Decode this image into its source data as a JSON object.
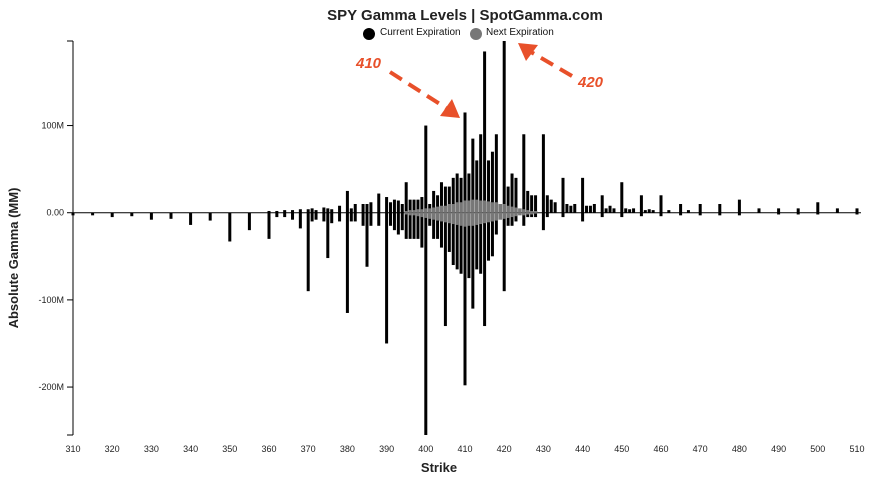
{
  "chart_data": {
    "type": "bar",
    "title": "SPY Gamma Levels | SpotGamma.com",
    "xlabel": "Strike",
    "ylabel": "Absolute Gamma (MM)",
    "xlim": [
      310,
      510
    ],
    "ylim": [
      -255,
      197
    ],
    "x_ticks": [
      "310",
      "320",
      "330",
      "340",
      "350",
      "360",
      "370",
      "380",
      "390",
      "400",
      "410",
      "420",
      "430",
      "440",
      "450",
      "460",
      "470",
      "480",
      "490",
      "500",
      "510"
    ],
    "y_ticks": [
      {
        "value": 100,
        "label": "100M"
      },
      {
        "value": 0,
        "label": "0.00"
      },
      {
        "value": -100,
        "label": "-100M"
      },
      {
        "value": -200,
        "label": "-200M"
      }
    ],
    "legend": {
      "placement": "top-center",
      "items": [
        {
          "label": "Current Expiration",
          "color": "#000000"
        },
        {
          "label": "Next Expiration",
          "color": "#777777"
        }
      ]
    },
    "annotations": [
      {
        "text": "410",
        "target_strike": 410,
        "color": "#e8502a"
      },
      {
        "text": "420",
        "target_strike": 420,
        "color": "#e8502a"
      }
    ],
    "series": [
      {
        "name": "Current Expiration",
        "color": "#000000",
        "bars": [
          [
            310,
            0,
            -3
          ],
          [
            315,
            0,
            -3
          ],
          [
            320,
            0,
            -5
          ],
          [
            325,
            0,
            -4
          ],
          [
            330,
            0,
            -8
          ],
          [
            335,
            0,
            -7
          ],
          [
            340,
            0,
            -14
          ],
          [
            345,
            0,
            -9
          ],
          [
            350,
            0,
            -33
          ],
          [
            355,
            0,
            -20
          ],
          [
            360,
            2,
            -30
          ],
          [
            362,
            2,
            -5
          ],
          [
            364,
            3,
            -5
          ],
          [
            366,
            3,
            -8
          ],
          [
            368,
            4,
            -18
          ],
          [
            370,
            4,
            -90
          ],
          [
            371,
            5,
            -10
          ],
          [
            372,
            3,
            -8
          ],
          [
            374,
            6,
            -10
          ],
          [
            375,
            5,
            -52
          ],
          [
            376,
            4,
            -12
          ],
          [
            378,
            8,
            -10
          ],
          [
            380,
            25,
            -115
          ],
          [
            381,
            5,
            -10
          ],
          [
            382,
            10,
            -10
          ],
          [
            384,
            10,
            -15
          ],
          [
            385,
            10,
            -62
          ],
          [
            386,
            12,
            -15
          ],
          [
            388,
            22,
            -15
          ],
          [
            390,
            18,
            -150
          ],
          [
            391,
            12,
            -15
          ],
          [
            392,
            15,
            -20
          ],
          [
            393,
            14,
            -25
          ],
          [
            394,
            10,
            -20
          ],
          [
            395,
            35,
            -30
          ],
          [
            396,
            15,
            -30
          ],
          [
            397,
            15,
            -30
          ],
          [
            398,
            15,
            -30
          ],
          [
            399,
            18,
            -40
          ],
          [
            400,
            100,
            -255
          ],
          [
            401,
            10,
            -15
          ],
          [
            402,
            25,
            -30
          ],
          [
            403,
            20,
            -30
          ],
          [
            404,
            35,
            -40
          ],
          [
            405,
            30,
            -130
          ],
          [
            406,
            30,
            -45
          ],
          [
            407,
            40,
            -60
          ],
          [
            408,
            45,
            -65
          ],
          [
            409,
            40,
            -70
          ],
          [
            410,
            115,
            -198
          ],
          [
            411,
            45,
            -75
          ],
          [
            412,
            85,
            -110
          ],
          [
            413,
            60,
            -65
          ],
          [
            414,
            90,
            -70
          ],
          [
            415,
            185,
            -130
          ],
          [
            416,
            60,
            -55
          ],
          [
            417,
            70,
            -50
          ],
          [
            418,
            90,
            -25
          ],
          [
            420,
            197,
            -90
          ],
          [
            421,
            30,
            -15
          ],
          [
            422,
            45,
            -15
          ],
          [
            423,
            40,
            -10
          ],
          [
            425,
            90,
            -15
          ],
          [
            426,
            25,
            -5
          ],
          [
            427,
            20,
            -5
          ],
          [
            428,
            20,
            -5
          ],
          [
            430,
            90,
            -20
          ],
          [
            431,
            20,
            -5
          ],
          [
            432,
            15,
            0
          ],
          [
            433,
            12,
            0
          ],
          [
            435,
            40,
            -5
          ],
          [
            436,
            10,
            0
          ],
          [
            437,
            8,
            0
          ],
          [
            438,
            10,
            0
          ],
          [
            440,
            40,
            -10
          ],
          [
            441,
            8,
            0
          ],
          [
            442,
            8,
            0
          ],
          [
            443,
            10,
            0
          ],
          [
            445,
            20,
            -5
          ],
          [
            446,
            5,
            0
          ],
          [
            447,
            8,
            0
          ],
          [
            448,
            5,
            0
          ],
          [
            450,
            35,
            -5
          ],
          [
            451,
            5,
            0
          ],
          [
            452,
            4,
            0
          ],
          [
            453,
            5,
            0
          ],
          [
            455,
            20,
            -4
          ],
          [
            456,
            3,
            0
          ],
          [
            457,
            4,
            0
          ],
          [
            458,
            3,
            0
          ],
          [
            460,
            20,
            -4
          ],
          [
            462,
            3,
            0
          ],
          [
            465,
            10,
            -3
          ],
          [
            467,
            3,
            0
          ],
          [
            470,
            10,
            -3
          ],
          [
            475,
            10,
            -3
          ],
          [
            480,
            15,
            -3
          ],
          [
            485,
            5,
            0
          ],
          [
            490,
            5,
            -2
          ],
          [
            495,
            5,
            -2
          ],
          [
            500,
            12,
            -2
          ],
          [
            505,
            5,
            0
          ],
          [
            510,
            5,
            -2
          ]
        ]
      },
      {
        "name": "Next Expiration",
        "color": "#777777",
        "bars": [
          [
            395,
            2,
            -2
          ],
          [
            396,
            3,
            -3
          ],
          [
            397,
            3,
            -3
          ],
          [
            398,
            4,
            -4
          ],
          [
            399,
            4,
            -5
          ],
          [
            400,
            5,
            -6
          ],
          [
            401,
            5,
            -7
          ],
          [
            402,
            6,
            -8
          ],
          [
            403,
            7,
            -9
          ],
          [
            404,
            8,
            -10
          ],
          [
            405,
            8,
            -11
          ],
          [
            406,
            10,
            -12
          ],
          [
            407,
            10,
            -13
          ],
          [
            408,
            12,
            -14
          ],
          [
            409,
            12,
            -15
          ],
          [
            410,
            14,
            -16
          ],
          [
            411,
            14,
            -15
          ],
          [
            412,
            15,
            -15
          ],
          [
            413,
            15,
            -14
          ],
          [
            414,
            14,
            -13
          ],
          [
            415,
            14,
            -12
          ],
          [
            416,
            13,
            -11
          ],
          [
            417,
            12,
            -10
          ],
          [
            418,
            12,
            -9
          ],
          [
            419,
            10,
            -8
          ],
          [
            420,
            10,
            -7
          ],
          [
            421,
            8,
            -6
          ],
          [
            422,
            7,
            -5
          ],
          [
            423,
            6,
            -4
          ],
          [
            424,
            5,
            -3
          ],
          [
            425,
            4,
            -3
          ],
          [
            426,
            3,
            -2
          ],
          [
            427,
            2,
            -2
          ],
          [
            428,
            2,
            -1
          ]
        ]
      }
    ]
  }
}
